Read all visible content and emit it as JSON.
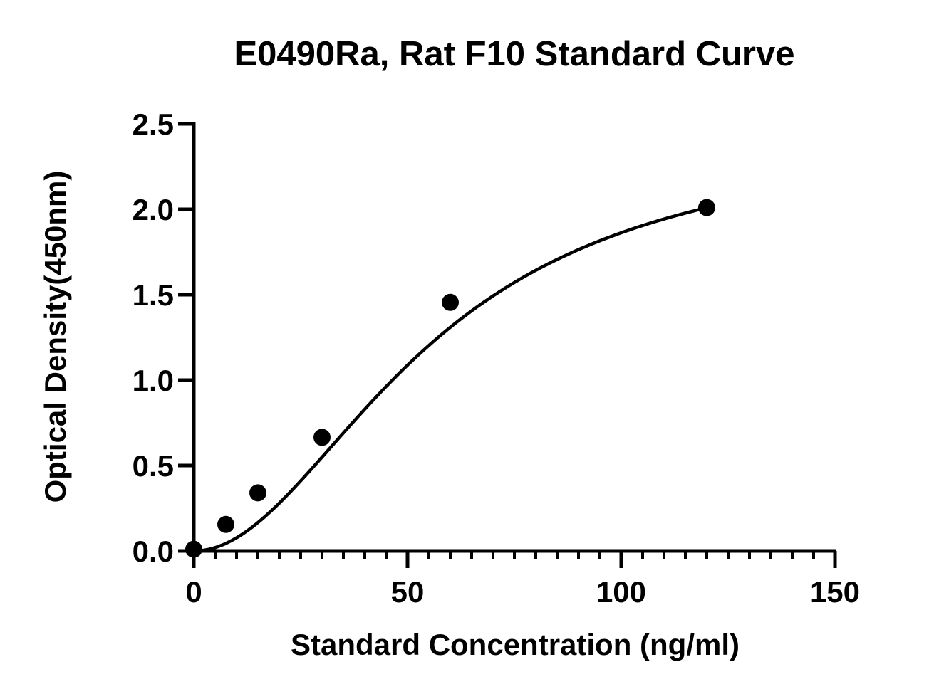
{
  "chart_data": {
    "type": "scatter",
    "title": "E0490Ra, Rat F10 Standard Curve",
    "xlabel": "Standard Concentration (ng/ml)",
    "ylabel": "Optical Density(450nm)",
    "xlim": [
      0,
      150
    ],
    "ylim": [
      0,
      2.5
    ],
    "x_ticks": [
      0,
      50,
      100,
      150
    ],
    "x_tick_labels": [
      "0",
      "50",
      "100",
      "150"
    ],
    "x_minor_tick_step": 5,
    "y_ticks": [
      0,
      0.5,
      1.0,
      1.5,
      2.0,
      2.5
    ],
    "y_tick_labels": [
      "0.0",
      "0.5",
      "1.0",
      "1.5",
      "2.0",
      "2.5"
    ],
    "grid": false,
    "legend": "none",
    "series": [
      {
        "x": [
          0,
          7.5,
          15,
          30,
          60,
          120
        ],
        "y": [
          0.01,
          0.155,
          0.34,
          0.665,
          1.455,
          2.01
        ]
      }
    ],
    "fit_curve": {
      "model": "4PL",
      "params": {
        "A": 0.0,
        "B": 1.99,
        "C": 56,
        "D": 2.45
      },
      "x_range": [
        0,
        120
      ]
    },
    "colors": {
      "points": "#000000",
      "curve": "#000000",
      "axes": "#000000",
      "background": "#ffffff"
    }
  }
}
